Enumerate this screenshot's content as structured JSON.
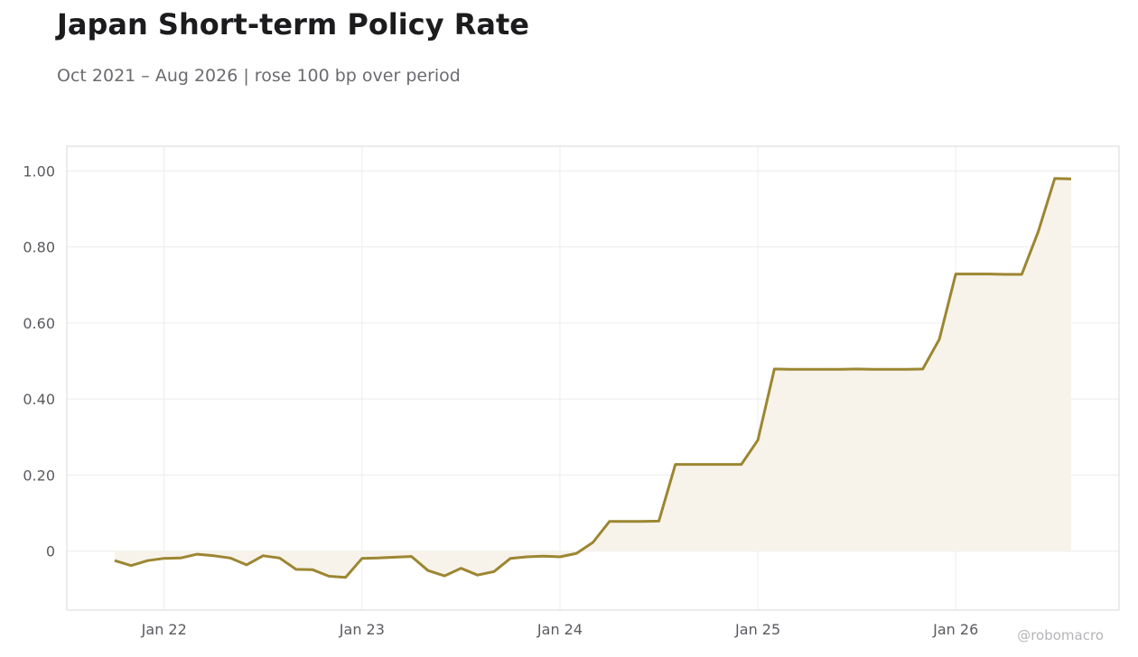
{
  "header": {
    "title": "Japan Short-term Policy Rate",
    "subtitle": "Oct 2021 – Aug 2026 | rose 100 bp over period"
  },
  "watermark": "@robomacro",
  "colors": {
    "line": "#9c8631",
    "fill": "#f7f3eb",
    "grid": "#ececec",
    "frame": "#d9d9d9"
  },
  "chart_data": {
    "type": "area",
    "title": "Japan Short-term Policy Rate",
    "xlabel": "",
    "ylabel": "",
    "ylim": [
      -0.155,
      1.065
    ],
    "y_ticks": [
      0,
      0.2,
      0.4,
      0.6,
      0.8,
      1.0
    ],
    "y_tick_labels": [
      "0",
      "0.20",
      "0.40",
      "0.60",
      "0.80",
      "1.00"
    ],
    "x_ticks": [
      "2022-01",
      "2023-01",
      "2024-01",
      "2025-01",
      "2026-01"
    ],
    "x_tick_labels": [
      "Jan 22",
      "Jan 23",
      "Jan 24",
      "Jan 25",
      "Jan 26"
    ],
    "grid": true,
    "series": [
      {
        "x": [
          "2021-10",
          "2021-11",
          "2021-12",
          "2022-01",
          "2022-02",
          "2022-03",
          "2022-04",
          "2022-05",
          "2022-06",
          "2022-07",
          "2022-08",
          "2022-09",
          "2022-10",
          "2022-11",
          "2022-12",
          "2023-01",
          "2023-02",
          "2023-03",
          "2023-04",
          "2023-05",
          "2023-06",
          "2023-07",
          "2023-08",
          "2023-09",
          "2023-10",
          "2023-11",
          "2023-12",
          "2024-01",
          "2024-02",
          "2024-03",
          "2024-04",
          "2024-05",
          "2024-06",
          "2024-07",
          "2024-08",
          "2024-09",
          "2024-10",
          "2024-11",
          "2024-12",
          "2025-01",
          "2025-02",
          "2025-03",
          "2025-04",
          "2025-05",
          "2025-06",
          "2025-07",
          "2025-08",
          "2025-09",
          "2025-10",
          "2025-11",
          "2025-12",
          "2026-01",
          "2026-02",
          "2026-03",
          "2026-04",
          "2026-05",
          "2026-06",
          "2026-07",
          "2026-08"
        ],
        "values": [
          -0.025,
          -0.038,
          -0.025,
          -0.019,
          -0.018,
          -0.008,
          -0.012,
          -0.018,
          -0.036,
          -0.012,
          -0.018,
          -0.048,
          -0.049,
          -0.066,
          -0.069,
          -0.019,
          -0.018,
          -0.016,
          -0.014,
          -0.051,
          -0.065,
          -0.045,
          -0.063,
          -0.054,
          -0.019,
          -0.015,
          -0.013,
          -0.015,
          -0.006,
          0.023,
          0.078,
          0.078,
          0.078,
          0.079,
          0.228,
          0.228,
          0.228,
          0.228,
          0.228,
          0.292,
          0.479,
          0.478,
          0.478,
          0.478,
          0.478,
          0.479,
          0.478,
          0.478,
          0.478,
          0.479,
          0.557,
          0.729,
          0.729,
          0.729,
          0.728,
          0.728,
          0.84,
          0.98,
          0.979
        ]
      }
    ]
  }
}
